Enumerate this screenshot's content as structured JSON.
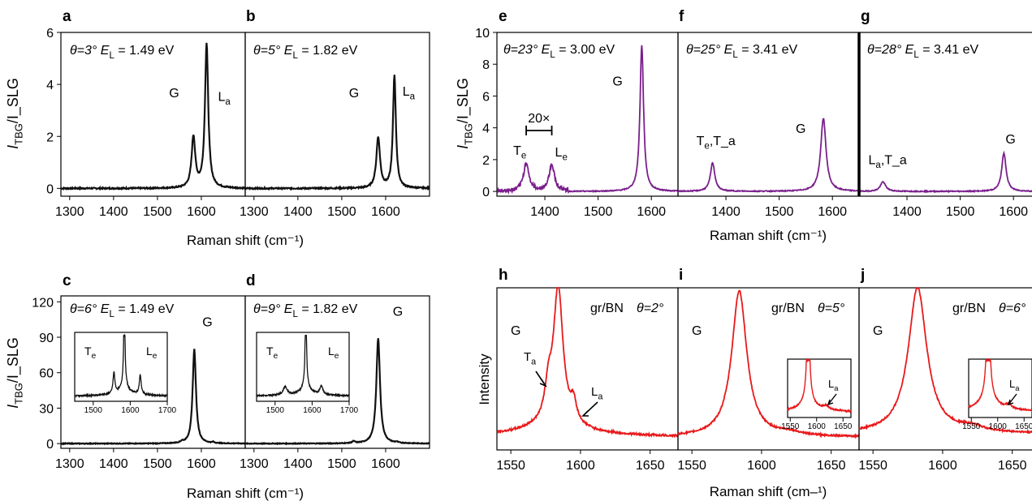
{
  "figure": {
    "x_axis_label_top_left": "Raman shift (cm⁻¹)",
    "x_axis_label_top_right": "Raman shift (cm⁻¹)",
    "x_axis_label_bottom_left": "Raman shift (cm⁻¹)",
    "x_axis_label_bottom_right": "Raman shift (cm–¹)",
    "y_axis_label_ratio": "I_TBG/I_SLG",
    "y_axis_label_intensity": "Intensity",
    "colors": {
      "black_series": "#111111",
      "purple_series": "#7a1f8c",
      "red_series": "#e8191b"
    }
  },
  "chart_data": [
    {
      "panel": "a",
      "type": "line",
      "annotation": "θ=3° E_L = 1.49 eV",
      "xlim": [
        1280,
        1700
      ],
      "ylim": [
        -0.3,
        6
      ],
      "xticks": [
        1300,
        1400,
        1500,
        1600
      ],
      "yticks": [
        0,
        2,
        4,
        6
      ],
      "peaks": [
        {
          "label": "G",
          "x": 1582,
          "y": 1.95
        },
        {
          "label": "L_a",
          "x": 1612,
          "y": 5.55
        }
      ],
      "baseline": 0.0
    },
    {
      "panel": "b",
      "type": "line",
      "annotation": "θ=5° E_L = 1.82 eV",
      "xlim": [
        1280,
        1700
      ],
      "ylim": [
        -0.3,
        6
      ],
      "xticks": [
        1300,
        1400,
        1500,
        1600
      ],
      "peaks": [
        {
          "label": "G",
          "x": 1583,
          "y": 1.95
        },
        {
          "label": "L_a",
          "x": 1620,
          "y": 4.35
        }
      ],
      "baseline": 0.0
    },
    {
      "panel": "c",
      "type": "line",
      "annotation": "θ=6° E_L = 1.49 eV",
      "xlim": [
        1280,
        1700
      ],
      "ylim": [
        -4,
        125
      ],
      "xticks": [
        1300,
        1400,
        1500,
        1600
      ],
      "yticks": [
        0,
        30,
        60,
        90,
        120
      ],
      "peaks": [
        {
          "label": "G",
          "x": 1584,
          "y": 80
        }
      ],
      "inset": {
        "xlim": [
          1450,
          1700
        ],
        "xticks": [
          1500,
          1600,
          1700
        ],
        "peaks": [
          {
            "label": "T_e",
            "x": 1556
          },
          {
            "label": "L_e",
            "x": 1627
          }
        ]
      }
    },
    {
      "panel": "d",
      "type": "line",
      "annotation": "θ=9° E_L = 1.82 eV",
      "xlim": [
        1280,
        1700
      ],
      "ylim": [
        -4,
        125
      ],
      "xticks": [
        1300,
        1400,
        1500,
        1600
      ],
      "peaks": [
        {
          "label": "G",
          "x": 1583,
          "y": 89
        }
      ],
      "inset": {
        "xlim": [
          1450,
          1700
        ],
        "xticks": [
          1500,
          1600,
          1700
        ],
        "peaks": [
          {
            "label": "T_e",
            "x": 1527
          },
          {
            "label": "L_e",
            "x": 1625
          }
        ]
      }
    },
    {
      "panel": "e",
      "type": "line",
      "annotation": "θ=23° E_L = 3.00 eV",
      "xlim": [
        1310,
        1650
      ],
      "ylim": [
        -0.3,
        10
      ],
      "xticks": [
        1400,
        1500,
        1600
      ],
      "yticks": [
        0,
        2,
        4,
        6,
        8,
        10
      ],
      "magnification": "20×",
      "peaks": [
        {
          "label": "T_e",
          "x": 1365,
          "y": 1.9
        },
        {
          "label": "L_e",
          "x": 1413,
          "y": 1.8
        },
        {
          "label": "G",
          "x": 1582,
          "y": 9.2
        }
      ]
    },
    {
      "panel": "f",
      "type": "line",
      "annotation": "θ=25° E_L = 3.41 eV",
      "xlim": [
        1310,
        1650
      ],
      "ylim": [
        -0.3,
        10
      ],
      "xticks": [
        1400,
        1500,
        1600
      ],
      "peaks": [
        {
          "label": "T_e,T_a",
          "x": 1375,
          "y": 1.8
        },
        {
          "label": "G",
          "x": 1583,
          "y": 4.6
        }
      ]
    },
    {
      "panel": "g",
      "type": "line",
      "annotation": "θ=28° E_L = 3.41 eV",
      "xlim": [
        1310,
        1650
      ],
      "ylim": [
        -0.3,
        10
      ],
      "xticks": [
        1400,
        1500,
        1600
      ],
      "peaks": [
        {
          "label": "L_a,T_a",
          "x": 1355,
          "y": 0.6
        },
        {
          "label": "G",
          "x": 1582,
          "y": 2.4
        }
      ]
    },
    {
      "panel": "h",
      "type": "line",
      "annotation_left": "G",
      "annotation_mid": "gr/BN",
      "annotation_right": "θ=2°",
      "xlim": [
        1540,
        1670
      ],
      "xticks": [
        1550,
        1600,
        1650
      ],
      "peaks": [
        {
          "label": "G",
          "x": 1584
        },
        {
          "label": "T_a",
          "x": 1577
        },
        {
          "label": "L_a",
          "x": 1595
        }
      ]
    },
    {
      "panel": "i",
      "type": "line",
      "annotation_left": "G",
      "annotation_mid": "gr/BN",
      "annotation_right": "θ=5°",
      "xlim": [
        1540,
        1670
      ],
      "xticks": [
        1550,
        1600,
        1650
      ],
      "peaks": [
        {
          "label": "G",
          "x": 1584
        }
      ],
      "inset": {
        "xlim": [
          1545,
          1665
        ],
        "xticks": [
          1550,
          1600,
          1650
        ],
        "peaks": [
          {
            "label": "L_a",
            "x": 1618
          }
        ]
      }
    },
    {
      "panel": "j",
      "type": "line",
      "annotation_left": "G",
      "annotation_mid": "gr/BN",
      "annotation_right": "θ=6°",
      "xlim": [
        1540,
        1670
      ],
      "xticks": [
        1550,
        1600,
        1650
      ],
      "peaks": [
        {
          "label": "G",
          "x": 1582
        }
      ],
      "inset": {
        "xlim": [
          1545,
          1665
        ],
        "xticks": [
          1550,
          1600,
          1650
        ],
        "peaks": [
          {
            "label": "L_a",
            "x": 1621
          }
        ]
      }
    }
  ]
}
